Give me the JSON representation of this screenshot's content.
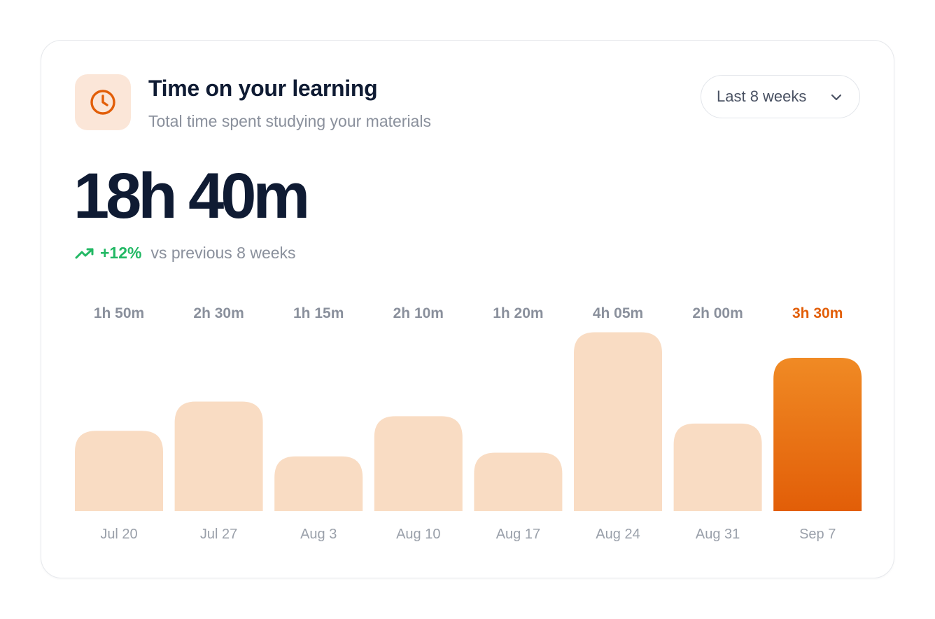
{
  "header": {
    "icon": "clock-icon",
    "title": "Time on your learning",
    "subtitle": "Total time spent studying your materials"
  },
  "range_select": {
    "label": "Last 8 weeks",
    "icon": "chevron-down-icon"
  },
  "summary": {
    "total": "18h 40m",
    "delta_icon": "trend-up-icon",
    "delta": "+12%",
    "delta_text": "vs previous 8 weeks"
  },
  "colors": {
    "accent": "#e25e08",
    "accent_light": "#f08a24",
    "bar": "#f9dcc3",
    "positive": "#22b864",
    "value_label": "#8a909c",
    "date_label": "#9aa0aa"
  },
  "chart_data": {
    "type": "bar",
    "categories": [
      "Jul 20",
      "Jul 27",
      "Aug 3",
      "Aug 10",
      "Aug 17",
      "Aug 24",
      "Aug 31",
      "Sep 7"
    ],
    "values": [
      110,
      150,
      75,
      130,
      80,
      245,
      120,
      210
    ],
    "value_labels": [
      "1h 50m",
      "2h 30m",
      "1h 15m",
      "2h 10m",
      "1h 20m",
      "4h 05m",
      "2h 00m",
      "3h 30m"
    ],
    "highlight_index": 7,
    "grid": false,
    "legend": "none"
  }
}
